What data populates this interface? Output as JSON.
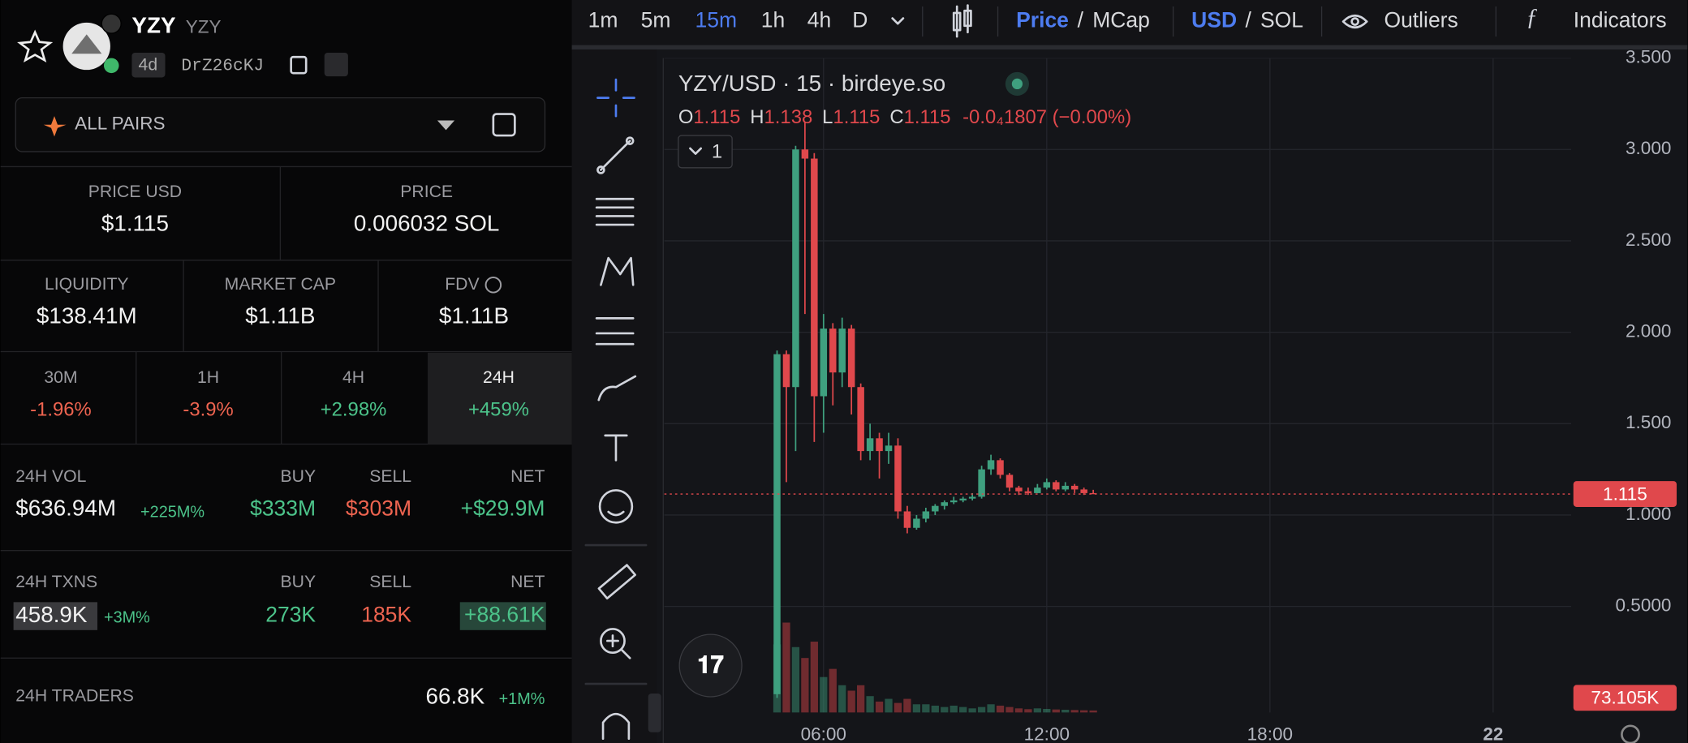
{
  "token": {
    "symbol": "YZY",
    "name": "YZY",
    "age": "4d",
    "address": "DrZ26cKJ"
  },
  "pair_selector": "ALL PAIRS",
  "price": [
    {
      "label": "PRICE USD",
      "value": "$1.115"
    },
    {
      "label": "PRICE",
      "value": "0.006032 SOL"
    }
  ],
  "metrics": [
    {
      "label": "LIQUIDITY",
      "value": "$138.41M"
    },
    {
      "label": "MARKET CAP",
      "value": "$1.11B"
    },
    {
      "label": "FDV",
      "value": "$1.11B"
    }
  ],
  "changes": [
    {
      "label": "30M",
      "value": "-1.96%"
    },
    {
      "label": "1H",
      "value": "-3.9%"
    },
    {
      "label": "4H",
      "value": "+2.98%"
    },
    {
      "label": "24H",
      "value": "+459%"
    }
  ],
  "volume": {
    "label": "24H VOL",
    "total": "$636.94M",
    "total_change": "+225M%",
    "buy_label": "BUY",
    "buy": "$333M",
    "sell_label": "SELL",
    "sell": "$303M",
    "net_label": "NET",
    "net": "+$29.9M"
  },
  "txns": {
    "label": "24H TXNS",
    "total": "458.9K",
    "total_change": "+3M%",
    "buy_label": "BUY",
    "buy": "273K",
    "sell_label": "SELL",
    "sell": "185K",
    "net_label": "NET",
    "net": "+88.61K"
  },
  "traders": {
    "label": "24H TRADERS",
    "value": "66.8K",
    "change": "+1M%"
  },
  "toolbar": {
    "intervals": [
      "1m",
      "5m",
      "15m",
      "1h",
      "4h",
      "D"
    ],
    "separator": "/",
    "price": "Price",
    "mcap": "MCap",
    "usd": "USD",
    "sol": "SOL",
    "outliers": "Outliers",
    "indicators": "Indicators",
    "pane_count": "1"
  },
  "chart_data": {
    "type": "candlestick",
    "title": "YZY/USD · 15 · birdeye.so",
    "legend": {
      "o_label": "O",
      "o": "1.115",
      "h_label": "H",
      "h": "1.138",
      "l_label": "L",
      "l": "1.115",
      "c_label": "C",
      "c": "1.115",
      "change": "-0.0₄1807 (−0.00%)"
    },
    "x": [
      4.75,
      5,
      5.25,
      5.5,
      5.75,
      6,
      6.25,
      6.5,
      6.75,
      7,
      7.25,
      7.5,
      7.75,
      8,
      8.25,
      8.5,
      8.75,
      9,
      9.25,
      9.5,
      9.75,
      10,
      10.25,
      10.5,
      10.75,
      11,
      11.25,
      11.5,
      11.75,
      12,
      12.25,
      12.5,
      12.75,
      13,
      13.25
    ],
    "open": [
      0.02,
      1.88,
      1.7,
      3.0,
      2.95,
      1.65,
      2.02,
      1.78,
      2.02,
      1.7,
      1.35,
      1.42,
      1.35,
      1.38,
      1.02,
      0.93,
      0.98,
      1.02,
      1.05,
      1.07,
      1.08,
      1.09,
      1.1,
      1.25,
      1.3,
      1.22,
      1.15,
      1.13,
      1.12,
      1.15,
      1.18,
      1.14,
      1.16,
      1.14,
      1.12
    ],
    "high": [
      1.9,
      1.9,
      3.02,
      3.15,
      2.98,
      2.1,
      2.05,
      2.08,
      2.04,
      1.72,
      1.5,
      1.45,
      1.45,
      1.42,
      1.05,
      1.0,
      1.04,
      1.06,
      1.08,
      1.1,
      1.1,
      1.12,
      1.27,
      1.33,
      1.31,
      1.23,
      1.16,
      1.15,
      1.17,
      1.2,
      1.19,
      1.18,
      1.17,
      1.15,
      1.138
    ],
    "low": [
      0.0,
      1.18,
      1.35,
      2.1,
      1.4,
      1.45,
      1.6,
      1.7,
      1.55,
      1.3,
      1.3,
      1.2,
      1.28,
      0.98,
      0.9,
      0.92,
      0.96,
      1.0,
      1.03,
      1.06,
      1.07,
      1.08,
      1.09,
      1.22,
      1.2,
      1.13,
      1.11,
      1.11,
      1.12,
      1.14,
      1.13,
      1.13,
      1.12,
      1.11,
      1.115
    ],
    "close": [
      1.88,
      1.7,
      3.0,
      2.95,
      1.65,
      2.02,
      1.78,
      2.02,
      1.7,
      1.35,
      1.42,
      1.35,
      1.38,
      1.02,
      0.93,
      0.98,
      1.02,
      1.05,
      1.07,
      1.08,
      1.09,
      1.1,
      1.25,
      1.3,
      1.22,
      1.15,
      1.13,
      1.12,
      1.15,
      1.18,
      1.14,
      1.16,
      1.14,
      1.12,
      1.115
    ],
    "volume": [
      2500,
      3300,
      2400,
      2000,
      2600,
      1300,
      1600,
      1000,
      800,
      1000,
      600,
      400,
      500,
      350,
      500,
      300,
      300,
      250,
      200,
      250,
      200,
      150,
      200,
      300,
      250,
      200,
      150,
      120,
      150,
      130,
      110,
      100,
      90,
      80,
      73.105
    ],
    "last_volume_label": "73.105K",
    "volume_lim": [
      0,
      6000
    ],
    "up_color": "#3fa07f",
    "down_color": "#e0484c",
    "xlim": [
      1.72,
      26.1
    ],
    "xticks": [
      {
        "value": 6,
        "label": "06:00"
      },
      {
        "value": 12,
        "label": "12:00"
      },
      {
        "value": 18,
        "label": "18:00"
      },
      {
        "value": 24,
        "label": "22"
      }
    ],
    "ylim": [
      -0.08,
      3.5
    ],
    "yticks": [
      {
        "value": 3.5,
        "label": "3.500"
      },
      {
        "value": 3,
        "label": "3.000"
      },
      {
        "value": 2.5,
        "label": "2.500"
      },
      {
        "value": 2,
        "label": "2.000"
      },
      {
        "value": 1.5,
        "label": "1.500"
      },
      {
        "value": 1,
        "label": "1.000"
      },
      {
        "value": 0.5,
        "label": "0.5000"
      }
    ],
    "grid": true
  }
}
